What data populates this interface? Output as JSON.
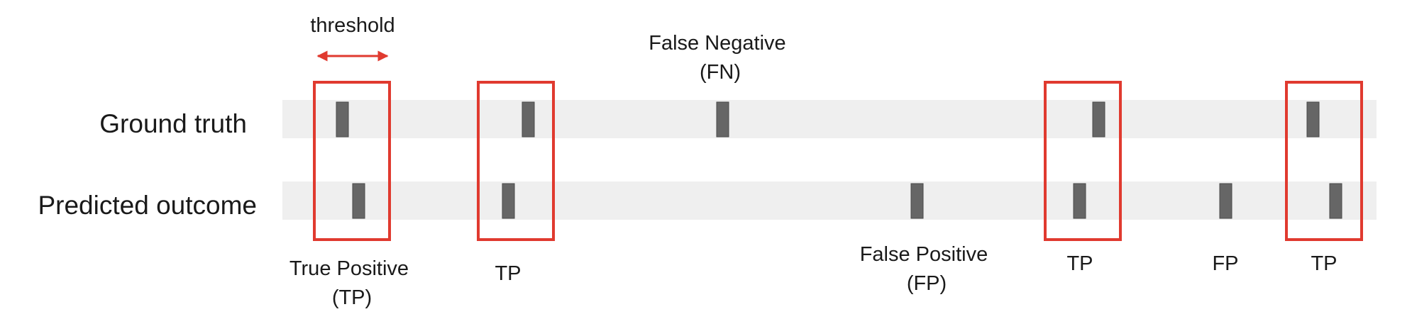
{
  "rows": {
    "ground_truth_label": "Ground truth",
    "predicted_label": "Predicted outcome"
  },
  "threshold": {
    "label": "threshold"
  },
  "annotations": {
    "fn": [
      "False Negative",
      "(FN)"
    ],
    "tp1": [
      "True Positive",
      "(TP)"
    ],
    "tp2": "TP",
    "fp1": [
      "False Positive",
      "(FP)"
    ],
    "tp3": "TP",
    "fp2": "FP",
    "tp4": "TP"
  },
  "colors": {
    "band": "#efefef",
    "marker": "#666666",
    "marker_border": "#4a4a4a",
    "highlight": "#e03a2f",
    "text": "#1a1a1a"
  }
}
